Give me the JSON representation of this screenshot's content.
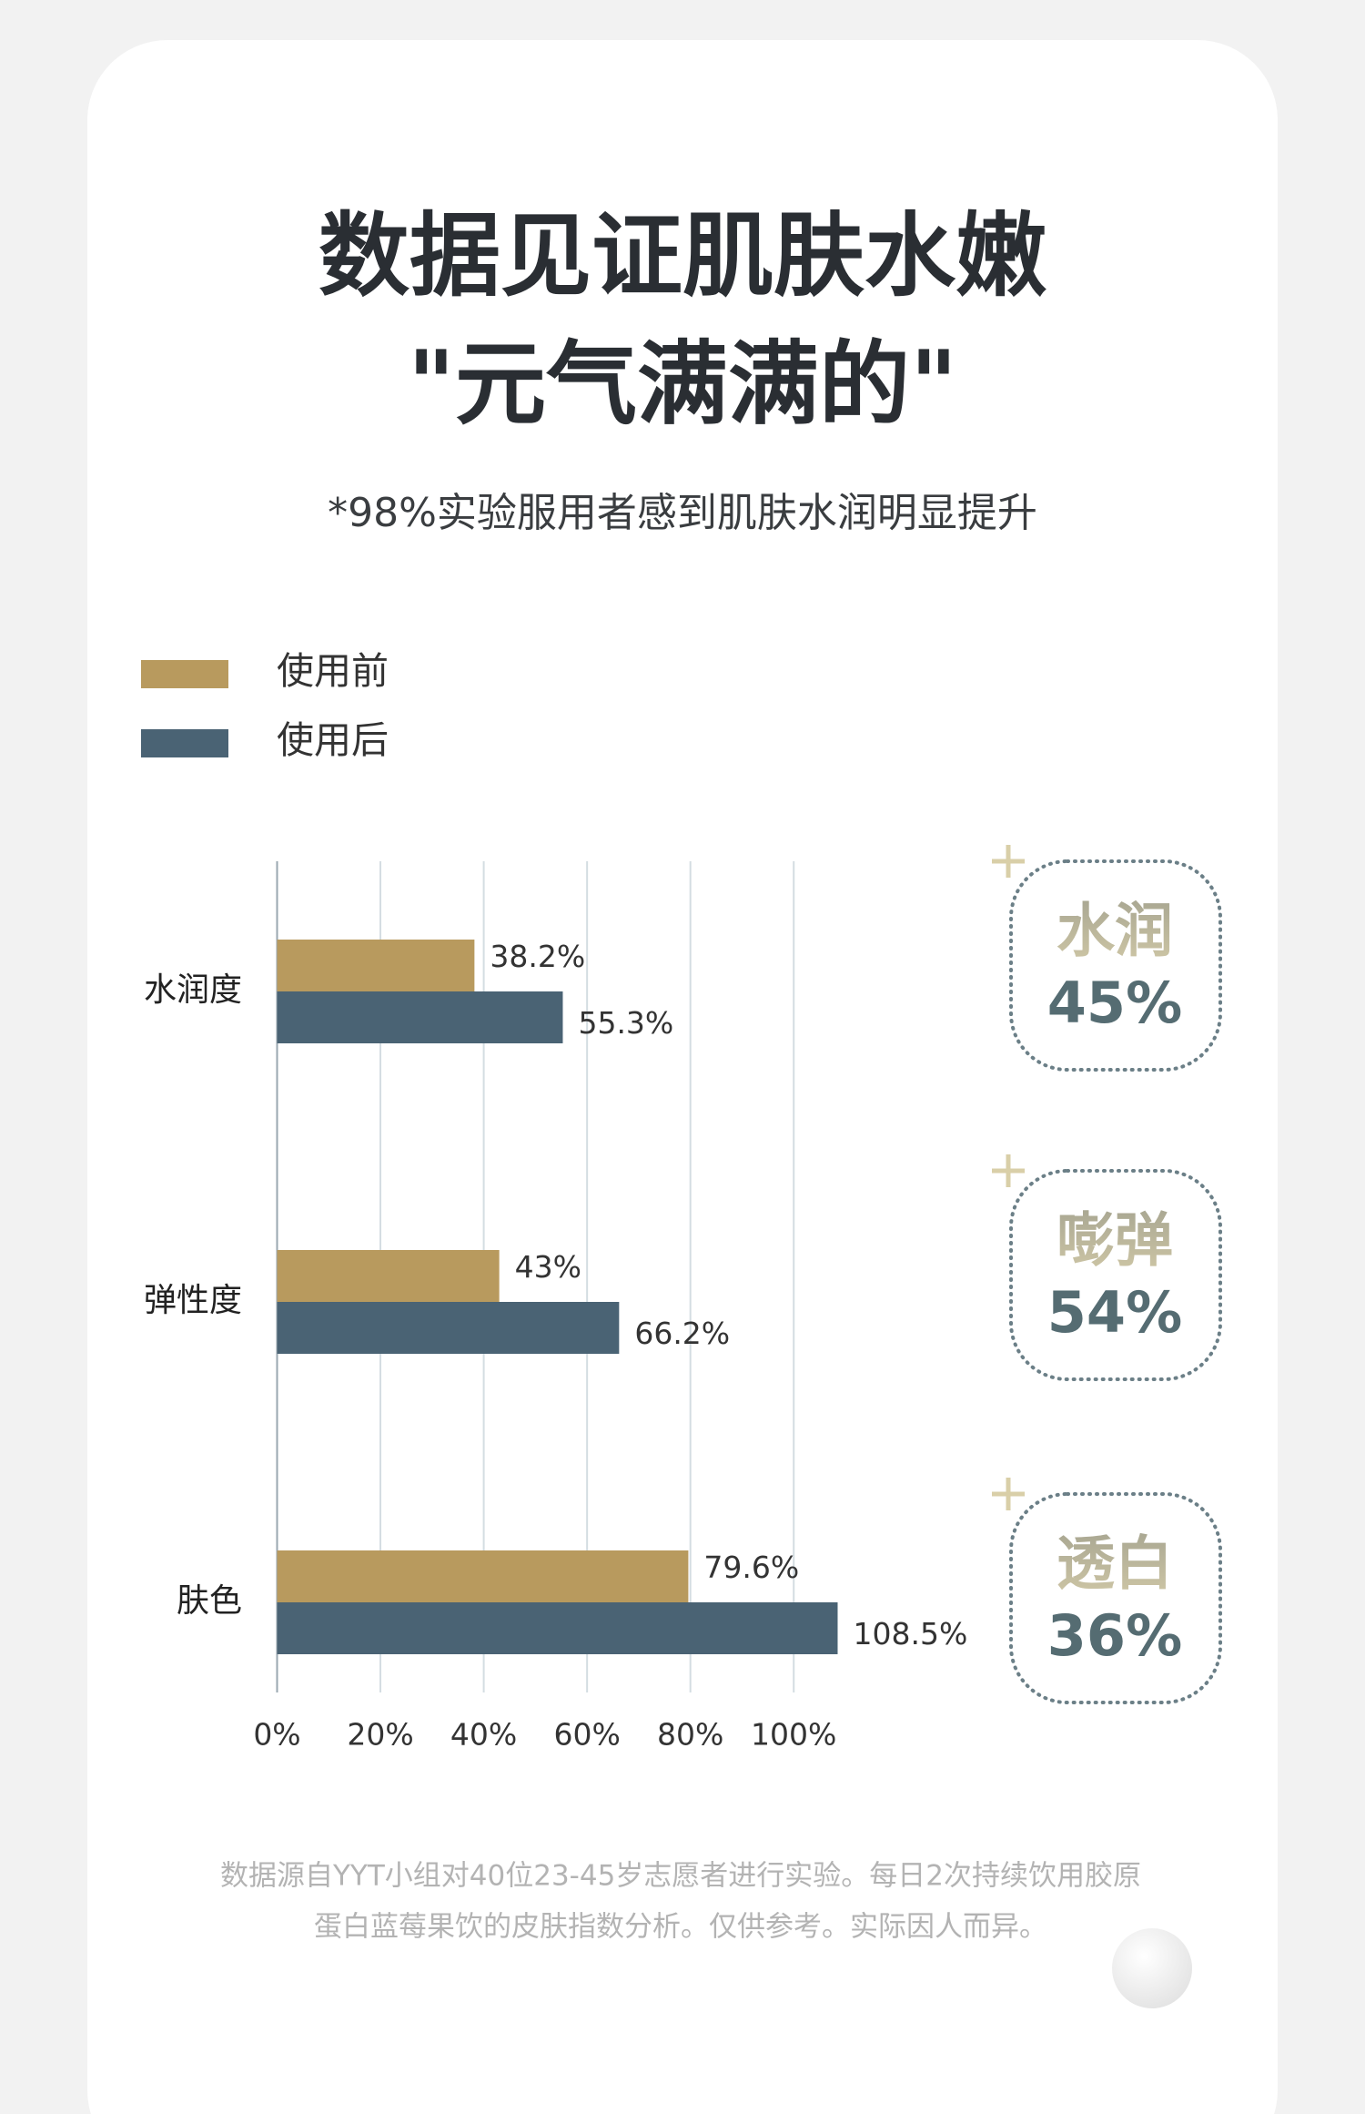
{
  "chart_data": {
    "type": "bar",
    "orientation": "horizontal",
    "title": [
      "数据见证肌肤水嫩",
      "\"元气满满的\""
    ],
    "subtitle": "*98%实验服用者感到肌肤水润明显提升",
    "categories": [
      "水润度",
      "弹性度",
      "肤色"
    ],
    "series": [
      {
        "name": "使用前",
        "color": "#b89a5e",
        "values": [
          38.2,
          43,
          79.6
        ],
        "value_labels": [
          "38.2%",
          "43%",
          "79.6%"
        ]
      },
      {
        "name": "使用后",
        "color": "#4a6374",
        "values": [
          55.3,
          66.2,
          108.5
        ],
        "value_labels": [
          "55.3%",
          "66.2%",
          "108.5%"
        ]
      }
    ],
    "xlim": [
      0,
      110
    ],
    "xticks": [
      {
        "value": 0,
        "label": "0%"
      },
      {
        "value": 20,
        "label": "20%"
      },
      {
        "value": 40,
        "label": "40%"
      },
      {
        "value": 60,
        "label": "60%"
      },
      {
        "value": 80,
        "label": "80%"
      },
      {
        "value": 100,
        "label": "100%"
      }
    ],
    "grid": true,
    "legend": "top-left",
    "badges": [
      {
        "name": "水润",
        "text": "45%"
      },
      {
        "name": "嘭弹",
        "text": "54%"
      },
      {
        "name": "透白",
        "text": "36%"
      }
    ],
    "footnote": [
      "数据源自YYT小组对40位23-45岁志愿者进行实验。每日2次持续饮用胶原",
      "蛋白蓝莓果饮的皮肤指数分析。仅供参考。实际因人而异。"
    ]
  }
}
